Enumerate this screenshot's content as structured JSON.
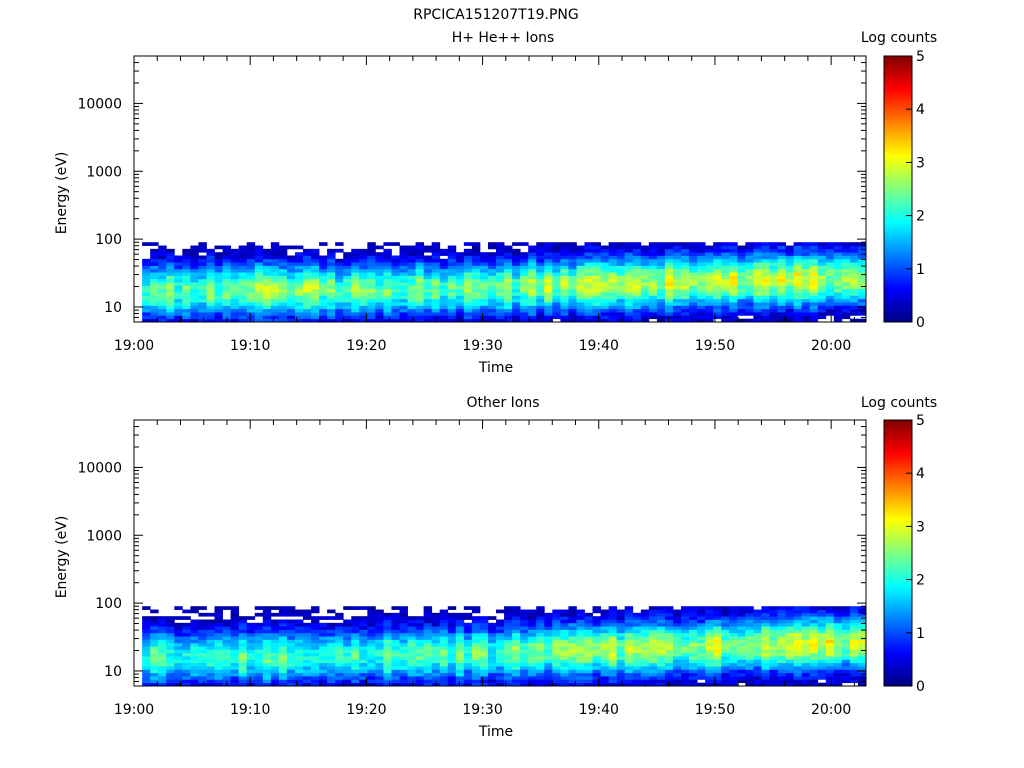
{
  "page_title": "RPCICA151207T19.PNG",
  "colors": {
    "colormap": [
      "#000080",
      "#0000ff",
      "#0080ff",
      "#00ffff",
      "#80ff80",
      "#ffff00",
      "#ff8000",
      "#ff0000",
      "#800000"
    ],
    "axis": "#000000",
    "background": "#ffffff"
  },
  "chart_data": [
    {
      "type": "heatmap",
      "title": "H+ He++ Ions",
      "xlabel": "Time",
      "ylabel": "Energy (eV)",
      "x_scale": "time",
      "y_scale": "log",
      "xlim": [
        "19:00",
        "20:03"
      ],
      "ylim": [
        6,
        50000
      ],
      "x_ticks": [
        "19:00",
        "19:10",
        "19:20",
        "19:30",
        "19:40",
        "19:50",
        "20:00"
      ],
      "y_ticks": [
        "10",
        "100",
        "1000",
        "10000"
      ],
      "colorbar": {
        "label": "Log counts",
        "range": [
          0,
          5
        ],
        "ticks": [
          "0",
          "1",
          "2",
          "3",
          "4",
          "5"
        ]
      },
      "profile": [
        {
          "time": "19:00",
          "peak_energy_eV": 17,
          "peak_log_counts": 2.3
        },
        {
          "time": "19:10",
          "peak_energy_eV": 18,
          "peak_log_counts": 2.5
        },
        {
          "time": "19:20",
          "peak_energy_eV": 18,
          "peak_log_counts": 2.4
        },
        {
          "time": "19:30",
          "peak_energy_eV": 19,
          "peak_log_counts": 2.4
        },
        {
          "time": "19:40",
          "peak_energy_eV": 22,
          "peak_log_counts": 2.7
        },
        {
          "time": "19:50",
          "peak_energy_eV": 24,
          "peak_log_counts": 2.8
        },
        {
          "time": "20:00",
          "peak_energy_eV": 26,
          "peak_log_counts": 2.8
        }
      ],
      "energy_range_eV": [
        6,
        90
      ]
    },
    {
      "type": "heatmap",
      "title": "Other Ions",
      "xlabel": "Time",
      "ylabel": "Energy (eV)",
      "x_scale": "time",
      "y_scale": "log",
      "xlim": [
        "19:00",
        "20:03"
      ],
      "ylim": [
        6,
        50000
      ],
      "x_ticks": [
        "19:00",
        "19:10",
        "19:20",
        "19:30",
        "19:40",
        "19:50",
        "20:00"
      ],
      "y_ticks": [
        "10",
        "100",
        "1000",
        "10000"
      ],
      "colorbar": {
        "label": "Log counts",
        "range": [
          0,
          5
        ],
        "ticks": [
          "0",
          "1",
          "2",
          "3",
          "4",
          "5"
        ]
      },
      "profile": [
        {
          "time": "19:00",
          "peak_energy_eV": 16,
          "peak_log_counts": 2.1
        },
        {
          "time": "19:10",
          "peak_energy_eV": 16,
          "peak_log_counts": 2.2
        },
        {
          "time": "19:20",
          "peak_energy_eV": 17,
          "peak_log_counts": 2.2
        },
        {
          "time": "19:30",
          "peak_energy_eV": 18,
          "peak_log_counts": 2.3
        },
        {
          "time": "19:40",
          "peak_energy_eV": 21,
          "peak_log_counts": 2.6
        },
        {
          "time": "19:50",
          "peak_energy_eV": 23,
          "peak_log_counts": 2.7
        },
        {
          "time": "20:00",
          "peak_energy_eV": 26,
          "peak_log_counts": 2.8
        }
      ],
      "energy_range_eV": [
        6,
        90
      ]
    }
  ]
}
